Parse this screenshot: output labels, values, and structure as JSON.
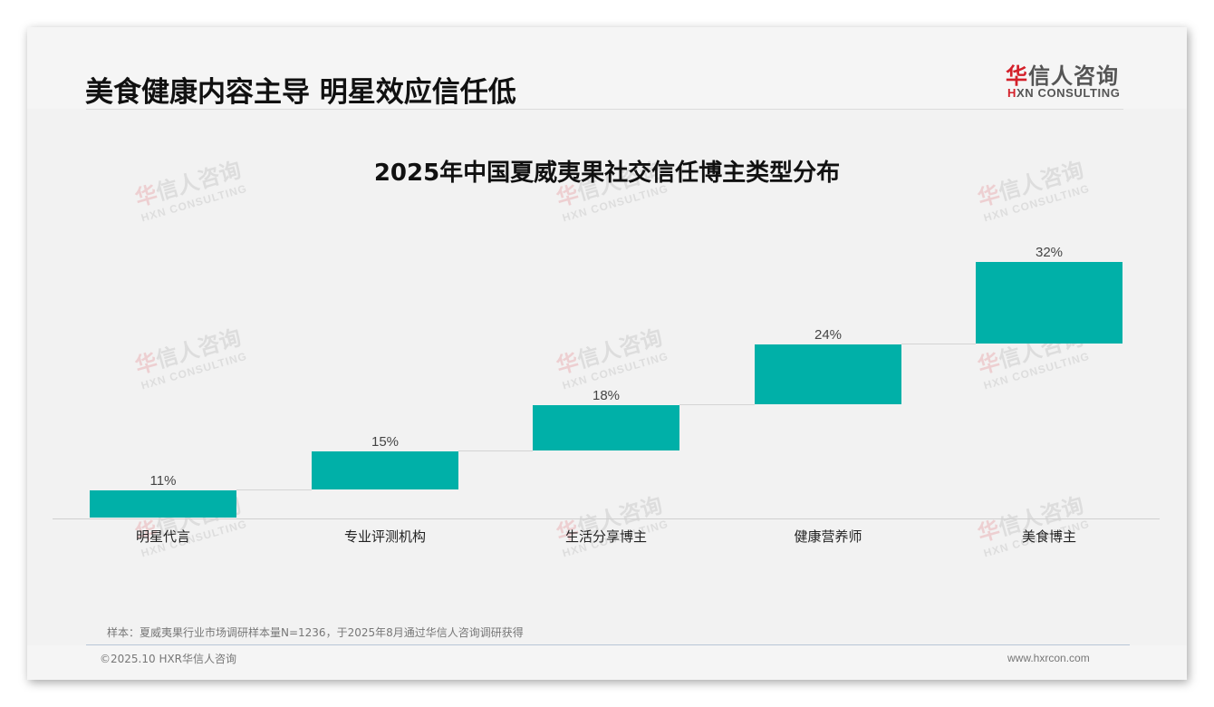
{
  "header": {
    "title": "美食健康内容主导 明星效应信任低",
    "logo": {
      "cn_red": "华",
      "cn_rest": "信人咨询",
      "en_red": "H",
      "en_rest": "XN CONSULTING"
    }
  },
  "watermark": {
    "cn_red": "华",
    "cn_rest": "信人咨询",
    "en": "HXN CONSULTING"
  },
  "chart_data": {
    "type": "bar",
    "subtype": "waterfall-steps",
    "title": "2025年中国夏威夷果社交信任博主类型分布",
    "categories": [
      "明星代言",
      "专业评测机构",
      "生活分享博主",
      "健康营养师",
      "美食博主"
    ],
    "values": [
      11,
      15,
      18,
      24,
      32
    ],
    "value_labels": [
      "11%",
      "15%",
      "18%",
      "24%",
      "32%"
    ],
    "xlabel": "",
    "ylabel": "",
    "unit": "%",
    "grid": false,
    "legend": "none",
    "bar_color": "#00b0a8"
  },
  "footer": {
    "footnote": "样本：夏威夷果行业市场调研样本量N=1236，于2025年8月通过华信人咨询调研获得",
    "copyright": "©2025.10 HXR华信人咨询",
    "website": "www.hxrcon.com"
  }
}
